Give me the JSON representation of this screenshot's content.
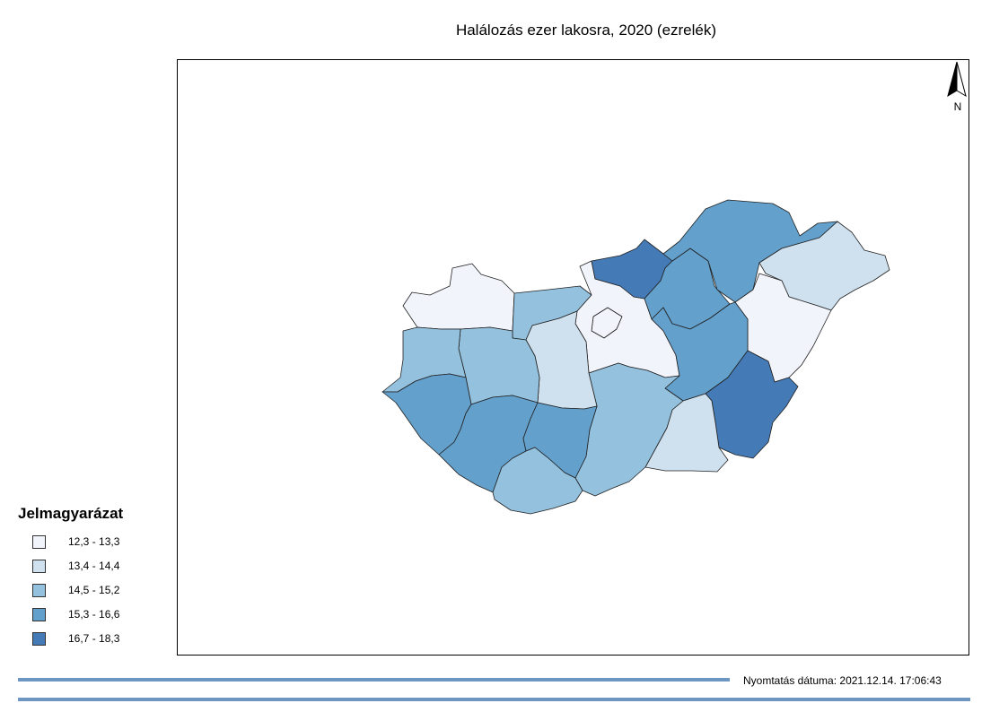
{
  "title": "Halálozás ezer lakosra, 2020 (ezrelék)",
  "north_arrow": {
    "label": "N",
    "icon": "north-arrow-icon"
  },
  "legend": {
    "title": "Jelmagyarázat",
    "classes": [
      {
        "label": "12,3 - 13,3",
        "color": "#f2f4fb"
      },
      {
        "label": "13,4 - 14,4",
        "color": "#cfe0ee"
      },
      {
        "label": "14,5 - 15,2",
        "color": "#93c1de"
      },
      {
        "label": "15,3 - 16,6",
        "color": "#63a0cc"
      },
      {
        "label": "16,7 - 18,3",
        "color": "#447ab5"
      }
    ]
  },
  "footer": {
    "print_date_label": "Nyomtatás dátuma:",
    "print_date_value": "2021.12.14.   17:06:43"
  },
  "regions": [
    {
      "name": "gyor-moson-sopron",
      "class": 0
    },
    {
      "name": "komarom-esztergom",
      "class": 2
    },
    {
      "name": "budapest",
      "class": 0
    },
    {
      "name": "pest",
      "class": 0
    },
    {
      "name": "nograd",
      "class": 4
    },
    {
      "name": "heves",
      "class": 3
    },
    {
      "name": "borsod-abauj-zemplen",
      "class": 3
    },
    {
      "name": "szabolcs-szatmar-bereg",
      "class": 1
    },
    {
      "name": "hajdu-bihar",
      "class": 0
    },
    {
      "name": "jasz-nagykun-szolnok",
      "class": 3
    },
    {
      "name": "bekes",
      "class": 4
    },
    {
      "name": "csongrad-csanad",
      "class": 1
    },
    {
      "name": "bacs-kiskun",
      "class": 2
    },
    {
      "name": "fejer",
      "class": 1
    },
    {
      "name": "veszprem",
      "class": 2
    },
    {
      "name": "vas",
      "class": 2
    },
    {
      "name": "zala",
      "class": 3
    },
    {
      "name": "somogy",
      "class": 3
    },
    {
      "name": "tolna",
      "class": 3
    },
    {
      "name": "baranya",
      "class": 2
    }
  ]
}
